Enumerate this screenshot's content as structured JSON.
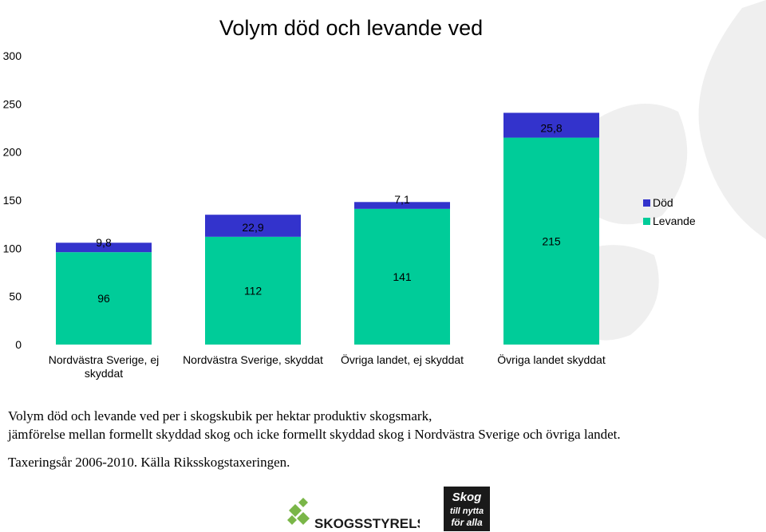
{
  "chart_data": {
    "type": "bar",
    "stacked": true,
    "title": "Volym död och levande ved",
    "categories": [
      [
        "Nordvästra Sverige, ej",
        "skyddat"
      ],
      [
        "Nordvästra Sverige, skyddat"
      ],
      [
        "Övriga landet, ej skyddat"
      ],
      [
        "Övriga landet skyddat"
      ]
    ],
    "series": [
      {
        "name": "Levande",
        "color": "#00CC99",
        "values": [
          96,
          112,
          141,
          215
        ],
        "labels": [
          "96",
          "112",
          "141",
          "215"
        ]
      },
      {
        "name": "Död",
        "color": "#3333CC",
        "values": [
          9.8,
          22.9,
          7.1,
          25.8
        ],
        "labels": [
          "9,8",
          "22,9",
          "7,1",
          "25,8"
        ]
      }
    ],
    "legend_order": [
      "Död",
      "Levande"
    ],
    "legend_position": "right",
    "ylim": [
      0,
      300
    ],
    "yticks": [
      0,
      50,
      100,
      150,
      200,
      250,
      300
    ],
    "xlabel": "",
    "ylabel": "",
    "grid": false
  },
  "caption": {
    "line1": "Volym död och levande ved per i skogskubik per hektar produktiv skogsmark,",
    "line2": "jämförelse mellan formellt skyddad skog och icke formellt skyddad skog i Nordvästra Sverige och övriga landet.",
    "source": "Taxeringsår 2006-2010. Källa Riksskogstaxeringen."
  },
  "logos": {
    "skogsstyrelsen": "SKOGSSTYRELSEN",
    "skog_line1": "Skog",
    "skog_line2": "till nytta",
    "skog_line3": "för alla"
  },
  "colors": {
    "watermark": "#eeeeee",
    "logo_green": "#7ab648",
    "logo_dark": "#1a1a1a"
  }
}
